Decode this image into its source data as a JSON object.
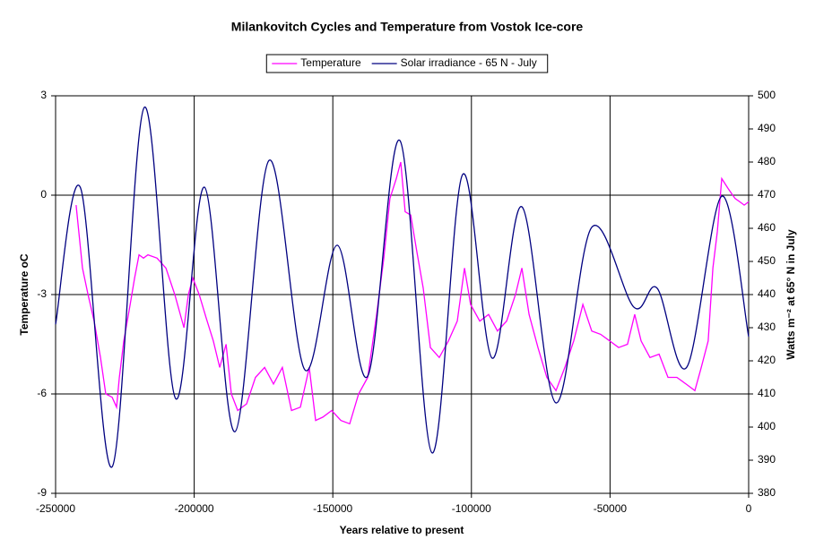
{
  "chart_data": {
    "type": "line",
    "title": "Milankovitch Cycles and Temperature from Vostok Ice-core",
    "xlabel": "Years relative to present",
    "ylabel": "Temperature oC",
    "y2label": "Watts m⁻² at 65° N in July",
    "xlim": [
      -250000,
      0
    ],
    "xticks": [
      -250000,
      -200000,
      -150000,
      -100000,
      -50000,
      0
    ],
    "ylim": [
      -9,
      3
    ],
    "yticks": [
      -9,
      -6,
      -3,
      0,
      3
    ],
    "y2lim": [
      380,
      500
    ],
    "y2ticks": [
      380,
      390,
      400,
      410,
      420,
      430,
      440,
      450,
      460,
      470,
      480,
      490,
      500
    ],
    "grid": true,
    "legend": "top",
    "series": [
      {
        "name": "Temperature",
        "color": "#ff00ff",
        "x": [
          -242600,
          -240300,
          -238300,
          -236100,
          -233800,
          -231900,
          -229600,
          -228000,
          -227000,
          -225400,
          -223100,
          -221500,
          -219900,
          -218300,
          -216700,
          -213400,
          -210200,
          -207000,
          -203700,
          -202100,
          -200500,
          -198200,
          -195700,
          -193100,
          -190800,
          -188500,
          -186600,
          -184300,
          -181100,
          -177900,
          -174600,
          -171400,
          -168200,
          -164900,
          -161700,
          -158500,
          -156200,
          -153600,
          -150400,
          -147100,
          -143900,
          -140700,
          -137400,
          -134200,
          -131600,
          -129400,
          -127100,
          -125500,
          -123900,
          -121900,
          -119700,
          -117400,
          -114800,
          -111600,
          -108300,
          -105100,
          -102500,
          -100300,
          -97000,
          -93800,
          -90600,
          -87300,
          -84100,
          -81800,
          -79200,
          -76000,
          -72800,
          -69500,
          -66300,
          -63100,
          -59800,
          -56600,
          -53400,
          -50100,
          -46900,
          -43700,
          -41100,
          -38800,
          -35600,
          -32300,
          -29100,
          -25900,
          -22600,
          -19400,
          -17100,
          -14600,
          -12900,
          -11300,
          -9700,
          -7400,
          -4900,
          -3200,
          -1600,
          0
        ],
        "values": [
          -0.3,
          -2.2,
          -3.0,
          -3.8,
          -4.9,
          -6.0,
          -6.1,
          -6.4,
          -5.5,
          -4.4,
          -3.3,
          -2.5,
          -1.8,
          -1.9,
          -1.8,
          -1.9,
          -2.2,
          -3.0,
          -4.0,
          -3.0,
          -2.5,
          -3.0,
          -3.7,
          -4.4,
          -5.2,
          -4.5,
          -6.0,
          -6.5,
          -6.3,
          -5.5,
          -5.2,
          -5.7,
          -5.2,
          -6.5,
          -6.4,
          -5.2,
          -6.8,
          -6.7,
          -6.5,
          -6.8,
          -6.9,
          -6.0,
          -5.5,
          -3.6,
          -1.9,
          -0.1,
          0.5,
          1.0,
          -0.5,
          -0.6,
          -1.7,
          -2.8,
          -4.6,
          -4.9,
          -4.4,
          -3.8,
          -2.2,
          -3.3,
          -3.8,
          -3.6,
          -4.1,
          -3.8,
          -3.0,
          -2.2,
          -3.6,
          -4.6,
          -5.5,
          -5.9,
          -5.2,
          -4.4,
          -3.3,
          -4.1,
          -4.2,
          -4.4,
          -4.6,
          -4.5,
          -3.6,
          -4.4,
          -4.9,
          -4.8,
          -5.5,
          -5.5,
          -5.7,
          -5.9,
          -5.2,
          -4.4,
          -2.2,
          -1.1,
          0.5,
          0.2,
          -0.1,
          -0.2,
          -0.3,
          -0.2
        ]
      },
      {
        "name": "Solar irradiance - 65 N - July",
        "color": "#000080",
        "axis": "y2",
        "x": [
          -250000,
          -241000,
          -229600,
          -218000,
          -206700,
          -196300,
          -185300,
          -173000,
          -160100,
          -148400,
          -137400,
          -125800,
          -114200,
          -103200,
          -92500,
          -81800,
          -69500,
          -56600,
          -41400,
          -33000,
          -22300,
          -9700,
          0
        ],
        "values": [
          431,
          472.2,
          388,
          496.5,
          408.6,
          472.4,
          398.6,
          480.5,
          417.3,
          454.9,
          415.4,
          486.5,
          392.2,
          476.2,
          420.8,
          466.5,
          407.3,
          460.3,
          436.2,
          441.9,
          418.1,
          469.7,
          427.3
        ]
      }
    ]
  }
}
